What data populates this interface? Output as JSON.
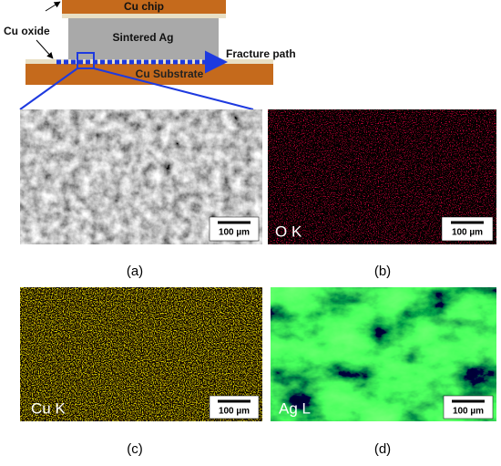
{
  "schematic": {
    "chip": "Cu chip",
    "sintered": "Sintered Ag",
    "oxide": "Cu oxide",
    "fracture": "Fracture path",
    "substrate": "Cu Substrate"
  },
  "panels": [
    {
      "caption": "(a)",
      "scale_bar": "100 µm"
    },
    {
      "caption": "(b)",
      "scale_bar": "100 µm",
      "element": "O K"
    },
    {
      "caption": "(c)",
      "scale_bar": "100 µm",
      "element": "Cu K"
    },
    {
      "caption": "(d)",
      "scale_bar": "100 µm",
      "element": "Ag L"
    }
  ]
}
